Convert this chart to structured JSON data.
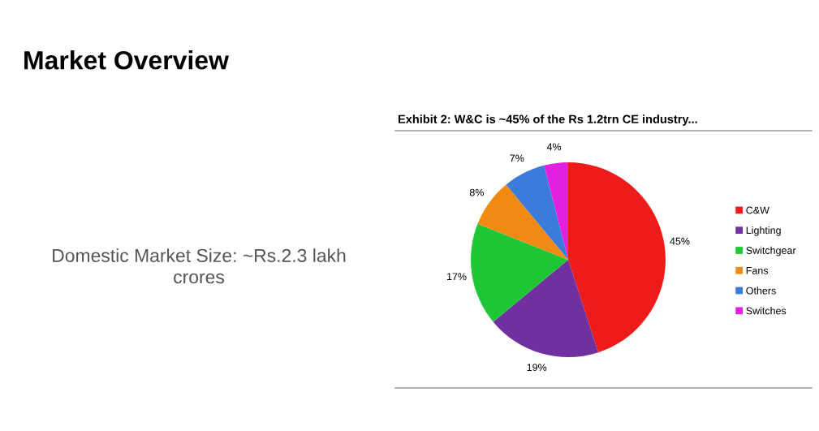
{
  "chart_data": {
    "type": "pie",
    "title": "Exhibit 2: W&C is ~45% of the Rs 1.2trn CE industry...",
    "annotations": [
      "Market Overview",
      "Domestic Market Size: ~Rs.2.3 lakh\ncrores"
    ],
    "categories": [
      "C&W",
      "Lighting",
      "Switchgear",
      "Fans",
      "Others",
      "Switches"
    ],
    "values": [
      45,
      19,
      17,
      8,
      7,
      4
    ],
    "colors": [
      "#ee1b1b",
      "#7030a0",
      "#1fc736",
      "#f08a12",
      "#3b7bd9",
      "#e021e0"
    ],
    "value_labels": [
      "45%",
      "19%",
      "17%",
      "8%",
      "7%",
      "4%"
    ],
    "legend": "right"
  }
}
